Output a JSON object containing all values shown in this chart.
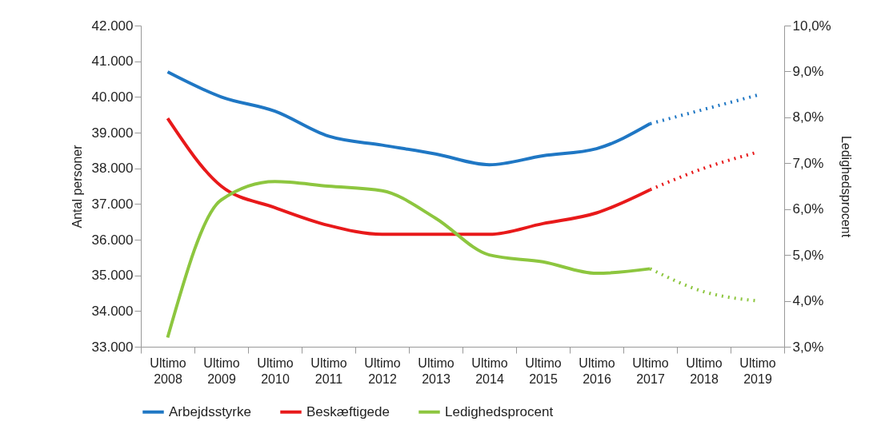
{
  "chart_data": {
    "type": "line",
    "categories": [
      "Ultimo 2008",
      "Ultimo 2009",
      "Ultimo 2010",
      "Ultimo 2011",
      "Ultimo 2012",
      "Ultimo 2013",
      "Ultimo 2014",
      "Ultimo 2015",
      "Ultimo 2016",
      "Ultimo 2017",
      "Ultimo 2018",
      "Ultimo 2019"
    ],
    "ylabel": "Antal personer",
    "y2label": "Ledighedsprocent",
    "ylim": [
      33000,
      42000
    ],
    "yticks": [
      {
        "value": 33000,
        "label": "33.000"
      },
      {
        "value": 34000,
        "label": "34.000"
      },
      {
        "value": 35000,
        "label": "35.000"
      },
      {
        "value": 36000,
        "label": "36.000"
      },
      {
        "value": 37000,
        "label": "37.000"
      },
      {
        "value": 38000,
        "label": "38.000"
      },
      {
        "value": 39000,
        "label": "39.000"
      },
      {
        "value": 40000,
        "label": "40.000"
      },
      {
        "value": 41000,
        "label": "41.000"
      },
      {
        "value": 42000,
        "label": "42.000"
      }
    ],
    "y2lim": [
      3,
      10
    ],
    "y2ticks": [
      {
        "value": 3,
        "label": "3,0%"
      },
      {
        "value": 4,
        "label": "4,0%"
      },
      {
        "value": 5,
        "label": "5,0%"
      },
      {
        "value": 6,
        "label": "6,0%"
      },
      {
        "value": 7,
        "label": "7,0%"
      },
      {
        "value": 8,
        "label": "8,0%"
      },
      {
        "value": 9,
        "label": "9,0%"
      },
      {
        "value": 10,
        "label": "10,0%"
      }
    ],
    "grid": false,
    "legend": "bottom",
    "marker": "none",
    "series": [
      {
        "name": "Arbejdsstyrke",
        "color": "#1f77c4",
        "line_style": "solid",
        "values": [
          40700,
          40000,
          39600,
          38900,
          38650,
          38400,
          38100,
          38350,
          38550,
          39250,
          null,
          null
        ]
      },
      {
        "color": "#1f77c4",
        "line_style": "dotted",
        "values": [
          null,
          null,
          null,
          null,
          null,
          null,
          null,
          null,
          null,
          39250,
          39650,
          40050
        ]
      },
      {
        "name": "Beskæftigede",
        "color": "#e8191a",
        "line_style": "solid",
        "values": [
          39400,
          37500,
          36900,
          36400,
          36150,
          36150,
          36150,
          36450,
          36750,
          37400,
          null,
          null
        ]
      },
      {
        "color": "#e8191a",
        "line_style": "dotted",
        "values": [
          null,
          null,
          null,
          null,
          null,
          null,
          null,
          null,
          null,
          37400,
          38000,
          38450
        ]
      },
      {
        "name": "Ledighedsprocent",
        "color": "#8dc63f",
        "line_style": "solid",
        "axis": "y2",
        "values": [
          3.2,
          6.2,
          6.6,
          6.5,
          6.4,
          5.8,
          5.0,
          4.85,
          4.6,
          4.7,
          null,
          null
        ]
      },
      {
        "color": "#8dc63f",
        "line_style": "dotted",
        "axis": "y2",
        "values": [
          null,
          null,
          null,
          null,
          null,
          null,
          null,
          null,
          null,
          4.7,
          4.2,
          4.0
        ]
      }
    ]
  }
}
